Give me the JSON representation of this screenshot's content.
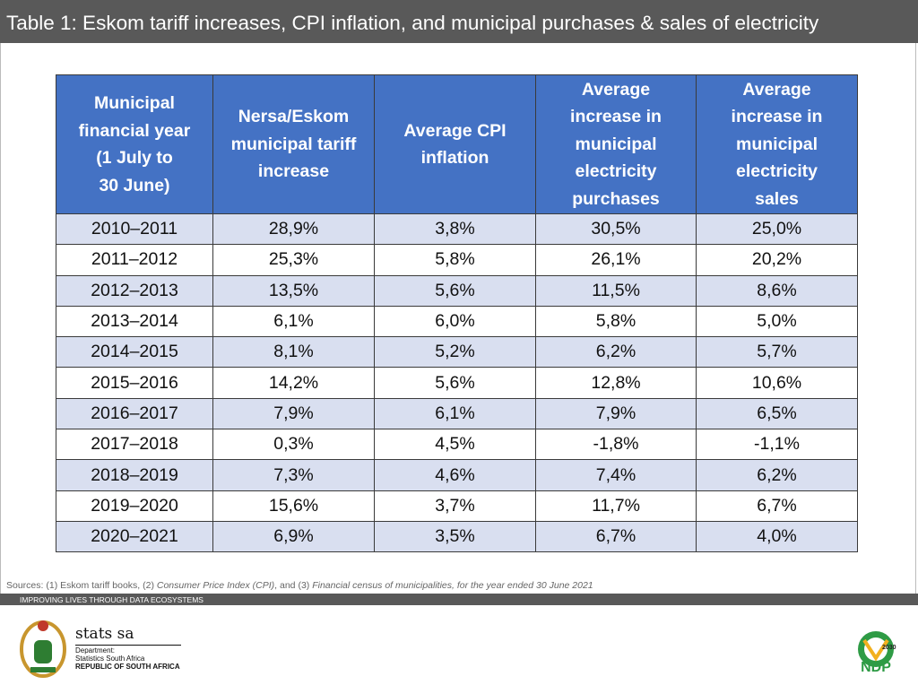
{
  "header": {
    "title": "Table 1: Eskom tariff increases, CPI inflation, and municipal purchases & sales of electricity"
  },
  "table": {
    "headers": [
      [
        "Municipal",
        "financial year",
        "(1 July to",
        "30 June)"
      ],
      [
        "Nersa/Eskom",
        "municipal tariff",
        "increase"
      ],
      [
        "Average CPI",
        "inflation"
      ],
      [
        "Average",
        "increase in",
        "municipal",
        "electricity",
        "purchases"
      ],
      [
        "Average",
        "increase in",
        "municipal",
        "electricity",
        "sales"
      ]
    ],
    "rows": [
      [
        "2010–2011",
        "28,9%",
        "3,8%",
        "30,5%",
        "25,0%"
      ],
      [
        "2011–2012",
        "25,3%",
        "5,8%",
        "26,1%",
        "20,2%"
      ],
      [
        "2012–2013",
        "13,5%",
        "5,6%",
        "11,5%",
        "8,6%"
      ],
      [
        "2013–2014",
        "6,1%",
        "6,0%",
        "5,8%",
        "5,0%"
      ],
      [
        "2014–2015",
        "8,1%",
        "5,2%",
        "6,2%",
        "5,7%"
      ],
      [
        "2015–2016",
        "14,2%",
        "5,6%",
        "12,8%",
        "10,6%"
      ],
      [
        "2016–2017",
        "7,9%",
        "6,1%",
        "7,9%",
        "6,5%"
      ],
      [
        "2017–2018",
        "0,3%",
        "4,5%",
        "-1,8%",
        "-1,1%"
      ],
      [
        "2018–2019",
        "7,3%",
        "4,6%",
        "7,4%",
        "6,2%"
      ],
      [
        "2019–2020",
        "15,6%",
        "3,7%",
        "11,7%",
        "6,7%"
      ],
      [
        "2020–2021",
        "6,9%",
        "3,5%",
        "6,7%",
        "4,0%"
      ]
    ]
  },
  "sources": [
    "Sources: (1) Eskom tariff books, (2) ",
    "Consumer Price Index (CPI)",
    ", and (3) ",
    "Financial census of municipalities, for the year ended 30 June 2021"
  ],
  "footer": {
    "tagline": "IMPROVING LIVES THROUGH DATA ECOSYSTEMS",
    "logo": {
      "name": "stats sa",
      "line1": "Department:",
      "line2": "Statistics South Africa",
      "line3": "REPUBLIC OF SOUTH AFRICA"
    },
    "ndp": {
      "name": "NDP",
      "year": "2030"
    }
  }
}
